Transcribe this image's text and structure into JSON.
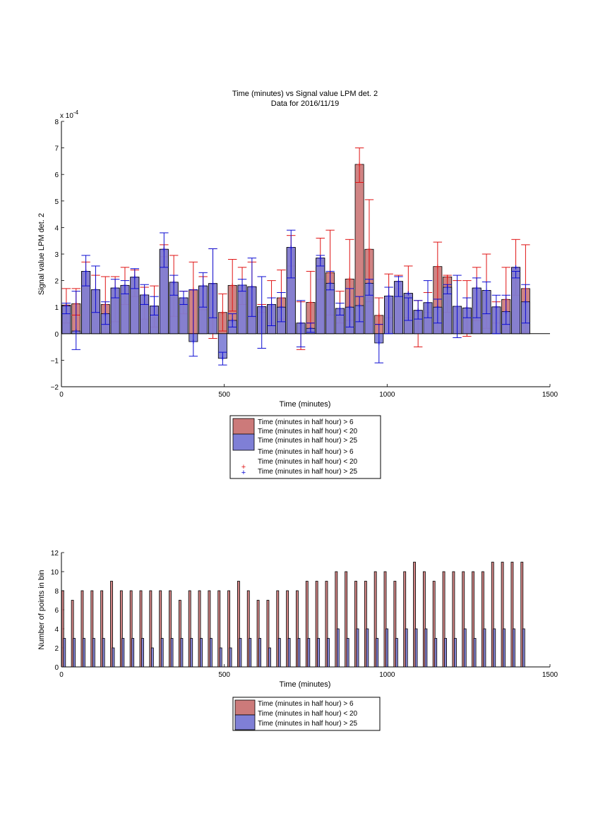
{
  "colors": {
    "red_fill": "#cc7a7a",
    "blue_fill": "#7f7fd6",
    "red_err": "#e01414",
    "blue_err": "#0c0cd2",
    "axis": "#000000"
  },
  "chart_data": [
    {
      "type": "bar",
      "title": "Time (minutes) vs Signal value LPM det. 2",
      "subtitle": "Data for 2016/11/19",
      "xlabel": "Time (minutes)",
      "ylabel": "Signal value LPM det. 2",
      "multiplier_label": "x 10",
      "multiplier_exponent": "-4",
      "xlim": [
        0,
        1500
      ],
      "ylim": [
        -2,
        8
      ],
      "xticks": [
        "0",
        "500",
        "1000",
        "1500"
      ],
      "yticks": [
        "−2",
        "−1",
        "0",
        "1",
        "2",
        "3",
        "4",
        "5",
        "6",
        "7",
        "8"
      ],
      "legend_position": "below",
      "legend": [
        "Time (minutes in half hour) > 6",
        "Time (minutes in half hour) < 20",
        "Time (minutes in half hour) > 25",
        "Time (minutes in half hour) > 6",
        "Time (minutes in half hour) < 20",
        "Time (minutes in half hour) > 25"
      ],
      "x": [
        15,
        45,
        75,
        105,
        135,
        165,
        195,
        225,
        255,
        285,
        315,
        345,
        375,
        405,
        435,
        465,
        495,
        525,
        555,
        585,
        615,
        645,
        675,
        705,
        735,
        765,
        795,
        825,
        855,
        885,
        915,
        945,
        975,
        1005,
        1035,
        1065,
        1095,
        1125,
        1155,
        1185,
        1215,
        1245,
        1275,
        1305,
        1335,
        1365,
        1395,
        1425
      ],
      "series": [
        {
          "name": "Time (minutes in half hour) > 6",
          "values": [
            1.08,
            1.13,
            2.35,
            1.66,
            1.1,
            1.72,
            1.82,
            2.13,
            1.46,
            1.04,
            3.18,
            1.94,
            1.35,
            1.66,
            1.8,
            1.89,
            0.8,
            1.82,
            1.83,
            1.77,
            1.02,
            1.1,
            1.35,
            3.25,
            0.4,
            1.18,
            2.85,
            2.3,
            0.95,
            2.06,
            6.38,
            3.18,
            0.69,
            1.42,
            1.97,
            1.52,
            0.88,
            1.17,
            2.53,
            2.14,
            1.03,
            0.97,
            1.72,
            1.63,
            1.01,
            1.29,
            2.5,
            1.7
          ],
          "err_low": [
            0.4,
            0.7,
            1.8,
            0.8,
            0.05,
            0.45,
            1.1,
            1.4,
            0.55,
            0.25,
            2.9,
            0.65,
            0.75,
            0.0,
            0.9,
            -0.18,
            0.1,
            0.85,
            1.1,
            0.6,
            0.8,
            0.4,
            0.55,
            2.55,
            -0.6,
            0.4,
            2.05,
            0.7,
            0.4,
            0.5,
            5.7,
            1.2,
            0.35,
            0.6,
            1.7,
            0.6,
            -0.5,
            0.8,
            0.1,
            0.8,
            0.1,
            -0.1,
            0.5,
            0.2,
            0.4,
            0.1,
            1.45,
            0.05
          ],
          "err_high": [
            1.7,
            1.7,
            2.7,
            2.2,
            2.15,
            2.15,
            2.5,
            2.4,
            1.75,
            1.8,
            3.35,
            2.95,
            1.6,
            2.7,
            2.15,
            3.2,
            1.5,
            2.8,
            2.5,
            2.7,
            1.1,
            2.0,
            2.4,
            3.7,
            1.2,
            2.35,
            3.6,
            3.9,
            1.6,
            3.55,
            7.0,
            5.05,
            1.35,
            2.25,
            2.2,
            2.55,
            1.25,
            1.55,
            3.45,
            2.2,
            2.0,
            2.0,
            2.5,
            3.0,
            1.2,
            2.5,
            3.55,
            3.35
          ]
        },
        {
          "name": "Time (minutes in half hour) > 25",
          "values": [
            1.05,
            0.1,
            2.35,
            1.66,
            0.75,
            1.72,
            1.82,
            2.13,
            1.46,
            1.04,
            3.18,
            1.94,
            1.35,
            -0.3,
            1.8,
            1.89,
            -0.93,
            0.5,
            1.83,
            1.77,
            1.02,
            1.1,
            1.0,
            3.25,
            0.4,
            0.2,
            2.85,
            1.9,
            0.95,
            1.0,
            1.06,
            1.9,
            -0.35,
            1.42,
            1.97,
            1.52,
            0.88,
            1.17,
            1.0,
            1.75,
            1.03,
            0.97,
            1.72,
            1.63,
            1.01,
            0.83,
            2.5,
            1.2
          ],
          "err_low": [
            0.75,
            -0.6,
            1.8,
            0.8,
            0.35,
            1.35,
            1.5,
            1.7,
            1.1,
            0.7,
            2.5,
            1.45,
            1.1,
            -0.85,
            1.0,
            0.6,
            -1.18,
            0.25,
            1.6,
            0.65,
            -0.55,
            0.3,
            0.45,
            2.1,
            -0.5,
            0.05,
            2.55,
            1.65,
            0.7,
            0.25,
            0.45,
            1.45,
            -1.1,
            0.0,
            1.4,
            0.5,
            0.55,
            0.6,
            0.4,
            1.5,
            -0.15,
            0.6,
            0.6,
            0.75,
            0.0,
            0.35,
            2.1,
            0.4
          ],
          "err_high": [
            1.15,
            1.6,
            2.95,
            2.55,
            1.2,
            2.05,
            2.0,
            2.45,
            1.85,
            1.4,
            3.8,
            2.2,
            1.6,
            1.65,
            2.3,
            3.2,
            -0.7,
            0.75,
            2.05,
            2.85,
            2.15,
            1.35,
            1.55,
            3.9,
            1.25,
            0.4,
            2.95,
            2.35,
            1.15,
            1.7,
            1.4,
            2.05,
            0.35,
            1.75,
            2.15,
            1.35,
            1.25,
            2.0,
            1.3,
            1.85,
            2.2,
            1.35,
            2.1,
            1.95,
            1.45,
            1.45,
            2.35,
            1.85
          ]
        }
      ]
    },
    {
      "type": "bar",
      "title": "",
      "xlabel": "Time (minutes)",
      "ylabel": "Number of points in bin",
      "xlim": [
        0,
        1500
      ],
      "ylim": [
        0,
        12
      ],
      "xticks": [
        "0",
        "500",
        "1000",
        "1500"
      ],
      "yticks": [
        "0",
        "2",
        "4",
        "6",
        "8",
        "10",
        "12"
      ],
      "legend_position": "below",
      "legend": [
        "Time (minutes in half hour) > 6",
        "Time (minutes in half hour) < 20",
        "Time (minutes in half hour) > 25"
      ],
      "x": [
        15,
        45,
        75,
        105,
        135,
        165,
        195,
        225,
        255,
        285,
        315,
        345,
        375,
        405,
        435,
        465,
        495,
        525,
        555,
        585,
        615,
        645,
        675,
        705,
        735,
        765,
        795,
        825,
        855,
        885,
        915,
        945,
        975,
        1005,
        1035,
        1065,
        1095,
        1125,
        1155,
        1185,
        1215,
        1245,
        1275,
        1305,
        1335,
        1365,
        1395,
        1425
      ],
      "series": [
        {
          "name": "Time (minutes in half hour) > 6",
          "values": [
            8,
            7,
            8,
            8,
            8,
            9,
            8,
            8,
            8,
            8,
            8,
            8,
            7,
            8,
            8,
            8,
            8,
            8,
            9,
            8,
            7,
            7,
            8,
            8,
            8,
            9,
            9,
            9,
            10,
            10,
            9,
            9,
            10,
            10,
            9,
            10,
            11,
            10,
            9,
            10,
            10,
            10,
            10,
            10,
            11,
            11,
            11,
            11
          ]
        },
        {
          "name": "Time (minutes in half hour) > 25",
          "values": [
            3,
            3,
            3,
            3,
            3,
            2,
            3,
            3,
            3,
            2,
            3,
            3,
            3,
            3,
            3,
            3,
            2,
            2,
            3,
            3,
            3,
            2,
            3,
            3,
            3,
            3,
            3,
            3,
            4,
            3,
            4,
            4,
            3,
            4,
            3,
            4,
            4,
            4,
            3,
            3,
            3,
            4,
            3,
            4,
            4,
            4,
            4,
            4
          ]
        }
      ]
    }
  ]
}
